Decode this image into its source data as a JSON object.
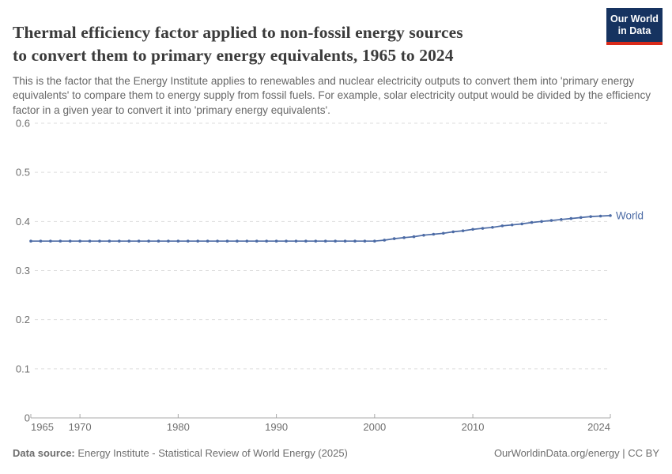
{
  "header": {
    "title": "Thermal efficiency factor applied to non-fossil energy sources to convert them to primary energy equivalents, 1965 to 2024",
    "title_line1": "Thermal efficiency factor applied to non-fossil energy sources",
    "title_line2": "to convert them to primary energy equivalents, 1965 to 2024",
    "subtitle": "This is the factor that the Energy Institute applies to renewables and nuclear electricity outputs to convert them into 'primary energy equivalents' to compare them to energy supply from fossil fuels. For example, solar electricity output would be divided by the efficiency factor in a given year to convert it into 'primary energy equivalents'.",
    "logo": {
      "line1": "Our World",
      "line2": "in Data"
    }
  },
  "chart_data": {
    "type": "line",
    "title": "Thermal efficiency factor applied to non-fossil energy sources to convert them to primary energy equivalents",
    "xlabel": "",
    "ylabel": "",
    "xlim": [
      1965,
      2024
    ],
    "ylim": [
      0,
      0.6
    ],
    "y_ticks": [
      0,
      0.1,
      0.2,
      0.3,
      0.4,
      0.5,
      0.6
    ],
    "x_ticks": [
      1965,
      1970,
      1980,
      1990,
      2000,
      2010,
      2024
    ],
    "grid": "horizontal-dashed",
    "legend_position": "end-of-line",
    "series": [
      {
        "name": "World",
        "color": "#4c6ba5",
        "x": [
          1965,
          1966,
          1967,
          1968,
          1969,
          1970,
          1971,
          1972,
          1973,
          1974,
          1975,
          1976,
          1977,
          1978,
          1979,
          1980,
          1981,
          1982,
          1983,
          1984,
          1985,
          1986,
          1987,
          1988,
          1989,
          1990,
          1991,
          1992,
          1993,
          1994,
          1995,
          1996,
          1997,
          1998,
          1999,
          2000,
          2001,
          2002,
          2003,
          2004,
          2005,
          2006,
          2007,
          2008,
          2009,
          2010,
          2011,
          2012,
          2013,
          2014,
          2015,
          2016,
          2017,
          2018,
          2019,
          2020,
          2021,
          2022,
          2023,
          2024
        ],
        "values": [
          0.36,
          0.36,
          0.36,
          0.36,
          0.36,
          0.36,
          0.36,
          0.36,
          0.36,
          0.36,
          0.36,
          0.36,
          0.36,
          0.36,
          0.36,
          0.36,
          0.36,
          0.36,
          0.36,
          0.36,
          0.36,
          0.36,
          0.36,
          0.36,
          0.36,
          0.36,
          0.36,
          0.36,
          0.36,
          0.36,
          0.36,
          0.36,
          0.36,
          0.36,
          0.36,
          0.36,
          0.362,
          0.365,
          0.367,
          0.369,
          0.372,
          0.374,
          0.376,
          0.379,
          0.381,
          0.384,
          0.386,
          0.388,
          0.391,
          0.393,
          0.395,
          0.398,
          0.4,
          0.402,
          0.404,
          0.406,
          0.408,
          0.41,
          0.411,
          0.412
        ]
      }
    ]
  },
  "footer": {
    "datasource_label": "Data source:",
    "datasource_text": " Energy Institute - Statistical Review of World Energy (2025)",
    "attribution": "OurWorldinData.org/energy | CC BY"
  },
  "colors": {
    "line": "#4c6ba5",
    "grid": "#dddddd",
    "axis": "#a8a8a8",
    "tick_label": "#6f6f6f",
    "title": "#3b3b3b",
    "subtitle": "#676767",
    "footer": "#6d6d6d",
    "logo_bg": "#163360",
    "logo_accent": "#d92a1a"
  }
}
